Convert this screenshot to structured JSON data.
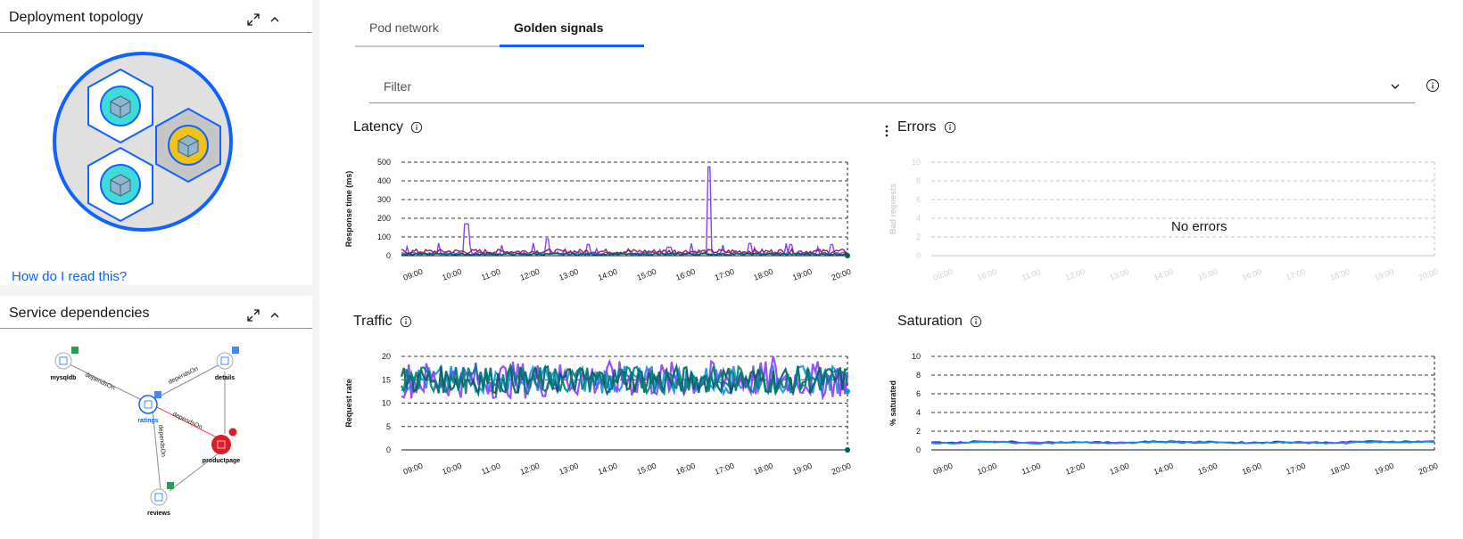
{
  "left": {
    "topology": {
      "title": "Deployment topology",
      "help_link": "How do I read this?"
    },
    "dependencies": {
      "title": "Service dependencies",
      "nodes": [
        "mysqldb",
        "details",
        "ratings",
        "productpage",
        "reviews"
      ],
      "edge_label": "dependsOn"
    }
  },
  "tabs": [
    "Pod network",
    "Golden signals"
  ],
  "filter": {
    "placeholder": "Filter"
  },
  "panels": {
    "latency": {
      "title": "Latency"
    },
    "errors": {
      "title": "Errors",
      "empty_text": "No errors"
    },
    "traffic": {
      "title": "Traffic"
    },
    "saturation": {
      "title": "Saturation"
    }
  },
  "colors": {
    "accent": "#0f62fe",
    "danger": "#da1e28",
    "success": "#24a148",
    "teal": "#3ddbd9",
    "yellow": "#f1c21b"
  },
  "chart_data": [
    {
      "type": "line",
      "ylabel": "Response time (ms)",
      "ylim": [
        0,
        500
      ],
      "yticks": [
        500,
        400,
        300,
        200,
        100,
        0
      ],
      "x": [
        "09:00",
        "10:00",
        "11:00",
        "12:00",
        "13:00",
        "14:00",
        "15:00",
        "16:00",
        "17:00",
        "18:00",
        "19:00",
        "20:00"
      ],
      "series": [
        {
          "values": [
            8,
            170,
            20,
            90,
            60,
            25,
            45,
            475,
            65,
            60,
            60,
            80
          ]
        },
        {
          "values": [
            15,
            40,
            15,
            15,
            10,
            15,
            20,
            35,
            15,
            20,
            20,
            15
          ]
        },
        {
          "values": [
            5,
            10,
            5,
            8,
            5,
            8,
            10,
            10,
            8,
            8,
            10,
            8
          ]
        }
      ]
    },
    {
      "type": "line",
      "ylabel": "Bad requests",
      "ylim": [
        0,
        10
      ],
      "yticks": [
        10,
        8,
        6,
        4,
        2,
        0
      ],
      "x": [
        "09:00",
        "10:00",
        "11:00",
        "12:00",
        "13:00",
        "14:00",
        "15:00",
        "16:00",
        "17:00",
        "18:00",
        "19:00",
        "20:00"
      ],
      "series": []
    },
    {
      "type": "line",
      "ylabel": "Request rate",
      "ylim": [
        0,
        20
      ],
      "yticks": [
        20,
        15,
        10,
        5,
        0
      ],
      "x": [
        "09:00",
        "10:00",
        "11:00",
        "12:00",
        "13:00",
        "14:00",
        "15:00",
        "16:00",
        "17:00",
        "18:00",
        "19:00",
        "20:00"
      ],
      "series": [
        {
          "range": [
            12,
            18
          ]
        },
        {
          "range": [
            11,
            19
          ]
        }
      ]
    },
    {
      "type": "line",
      "ylabel": "% saturated",
      "ylim": [
        0,
        10
      ],
      "yticks": [
        10,
        8,
        6,
        4,
        2,
        0
      ],
      "x": [
        "09:00",
        "10:00",
        "11:00",
        "12:00",
        "13:00",
        "14:00",
        "15:00",
        "16:00",
        "17:00",
        "18:00",
        "19:00",
        "20:00"
      ],
      "series": [
        {
          "values": [
            0.8,
            0.9,
            0.8,
            0.85,
            0.8,
            0.9,
            0.85,
            0.8,
            0.85,
            0.8,
            0.9,
            0.9
          ]
        }
      ]
    }
  ]
}
